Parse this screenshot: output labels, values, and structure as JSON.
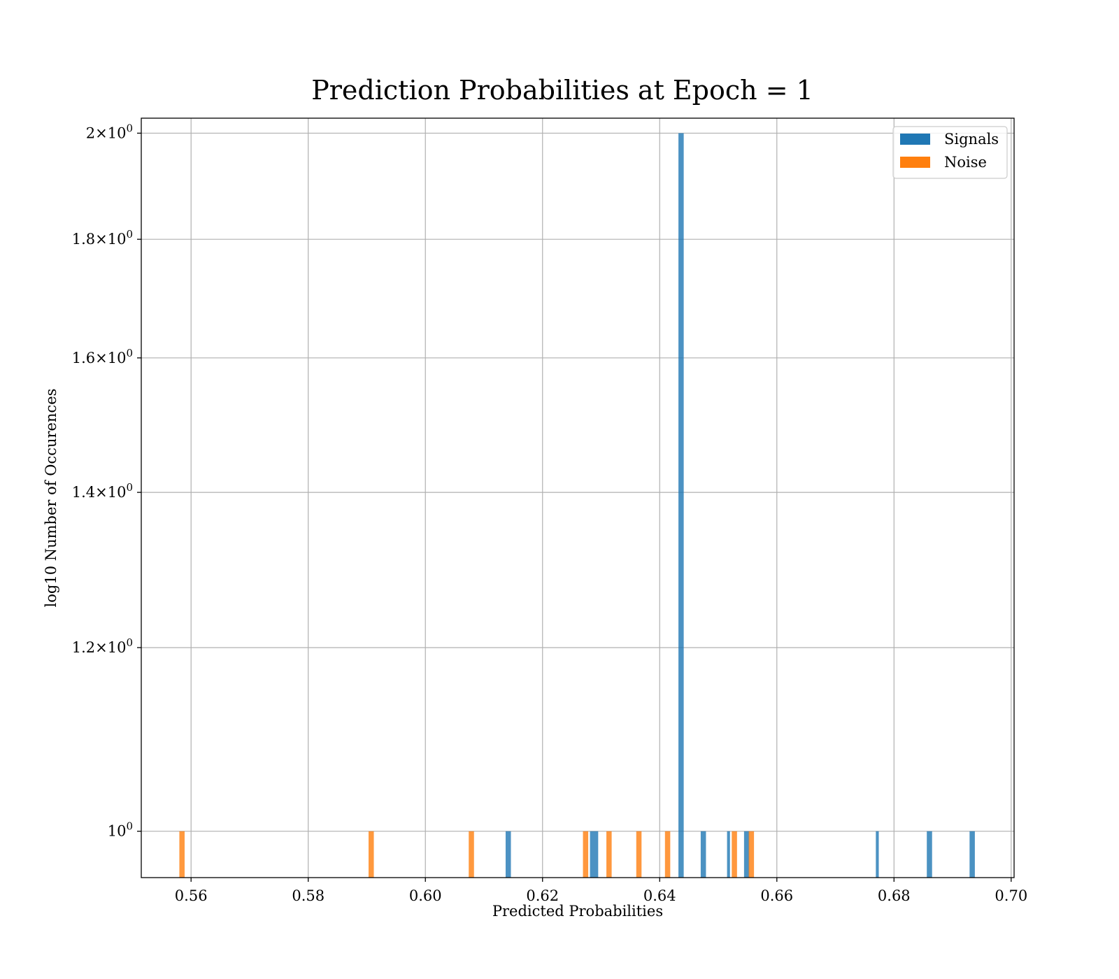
{
  "chart_data": {
    "type": "bar",
    "title": "Prediction Probabilities at Epoch = 1",
    "xlabel": "Predicted Probabilities",
    "ylabel": "log10 Number of Occurences",
    "xlim": [
      0.5515,
      0.7005
    ],
    "ylim": [
      0.955,
      2.03
    ],
    "yscale": "log",
    "grid": true,
    "legend_position": "top-right",
    "x_ticks": [
      0.56,
      0.58,
      0.6,
      0.62,
      0.64,
      0.66,
      0.68,
      0.7
    ],
    "x_tick_labels": [
      "0.56",
      "0.58",
      "0.60",
      "0.62",
      "0.64",
      "0.66",
      "0.68",
      "0.70"
    ],
    "y_ticks": [
      1.0,
      1.2,
      1.4,
      1.6,
      1.8,
      2.0
    ],
    "y_tick_labels": [
      {
        "mantissa": "",
        "exponent": "0"
      },
      {
        "mantissa": "1.2",
        "exponent": "0"
      },
      {
        "mantissa": "1.4",
        "exponent": "0"
      },
      {
        "mantissa": "1.6",
        "exponent": "0"
      },
      {
        "mantissa": "1.8",
        "exponent": "0"
      },
      {
        "mantissa": "2",
        "exponent": "0"
      }
    ],
    "series": [
      {
        "name": "Signals",
        "color": "#1f77b4",
        "bars": [
          {
            "x0": 0.6137,
            "x1": 0.6146,
            "value": 1
          },
          {
            "x0": 0.6281,
            "x1": 0.6295,
            "value": 1
          },
          {
            "x0": 0.6432,
            "x1": 0.6441,
            "value": 2
          },
          {
            "x0": 0.647,
            "x1": 0.6479,
            "value": 1
          },
          {
            "x0": 0.6515,
            "x1": 0.652,
            "value": 1
          },
          {
            "x0": 0.6544,
            "x1": 0.6553,
            "value": 1
          },
          {
            "x0": 0.6769,
            "x1": 0.6774,
            "value": 1
          },
          {
            "x0": 0.6856,
            "x1": 0.6865,
            "value": 1
          },
          {
            "x0": 0.6929,
            "x1": 0.6938,
            "value": 1
          }
        ]
      },
      {
        "name": "Noise",
        "color": "#ff7f0e",
        "bars": [
          {
            "x0": 0.558,
            "x1": 0.5589,
            "value": 1
          },
          {
            "x0": 0.5903,
            "x1": 0.5912,
            "value": 1
          },
          {
            "x0": 0.6074,
            "x1": 0.6083,
            "value": 1
          },
          {
            "x0": 0.6269,
            "x1": 0.6278,
            "value": 1
          },
          {
            "x0": 0.6309,
            "x1": 0.6318,
            "value": 1
          },
          {
            "x0": 0.636,
            "x1": 0.6369,
            "value": 1
          },
          {
            "x0": 0.6409,
            "x1": 0.6418,
            "value": 1
          },
          {
            "x0": 0.6523,
            "x1": 0.6532,
            "value": 1
          },
          {
            "x0": 0.6552,
            "x1": 0.6561,
            "value": 1
          }
        ]
      }
    ]
  }
}
